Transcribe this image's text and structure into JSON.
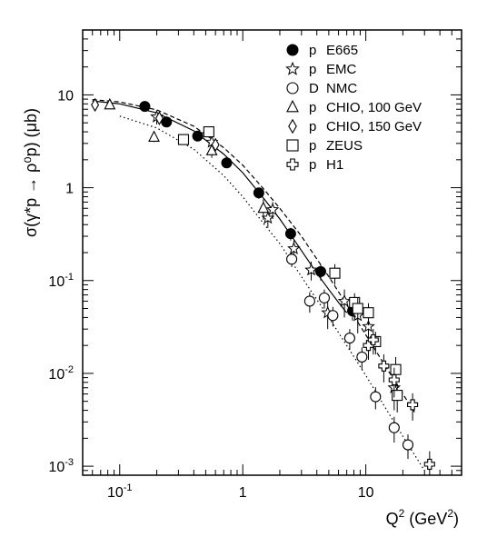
{
  "chart_data": {
    "type": "scatter",
    "x_scale": "log",
    "y_scale": "log",
    "xlim": [
      0.05,
      60
    ],
    "ylim": [
      0.0008,
      50
    ],
    "xlabel_main": "Q",
    "xlabel_sup": "2",
    "xlabel_unit_open": " (GeV",
    "xlabel_unit_sup": "2",
    "xlabel_unit_close": ")",
    "ylabel": "σ(γ*p → ρ⁰p) (μb)",
    "x_ticks": [
      {
        "value": 0.1,
        "base": "10",
        "exp": "-1"
      },
      {
        "value": 1,
        "base": "1",
        "exp": ""
      },
      {
        "value": 10,
        "base": "10",
        "exp": ""
      }
    ],
    "y_ticks": [
      {
        "value": 0.001,
        "base": "10",
        "exp": "-3"
      },
      {
        "value": 0.01,
        "base": "10",
        "exp": "-2"
      },
      {
        "value": 0.1,
        "base": "10",
        "exp": "-1"
      },
      {
        "value": 1,
        "base": "1",
        "exp": ""
      },
      {
        "value": 10,
        "base": "10",
        "exp": ""
      }
    ],
    "legend_position": "top-right",
    "series": [
      {
        "name": "p E665",
        "target": "p",
        "experiment": "E665",
        "marker": "filled-circle",
        "points": [
          [
            0.16,
            7.5,
            0.5
          ],
          [
            0.24,
            5.1,
            0.4
          ],
          [
            0.43,
            3.6,
            0.3
          ],
          [
            0.74,
            1.85,
            0.2
          ],
          [
            1.35,
            0.88,
            0.12
          ],
          [
            2.45,
            0.32,
            0.05
          ],
          [
            4.3,
            0.125,
            0.025
          ],
          [
            7.8,
            0.047,
            0.01
          ]
        ]
      },
      {
        "name": "p EMC",
        "target": "p",
        "experiment": "EMC",
        "marker": "star",
        "points": [
          [
            0.2,
            5.8,
            1.0
          ],
          [
            0.56,
            3.1,
            0.6
          ],
          [
            1.6,
            0.47,
            0.1
          ],
          [
            1.75,
            0.58,
            0.12
          ],
          [
            2.6,
            0.22,
            0.05
          ],
          [
            3.6,
            0.13,
            0.03
          ],
          [
            4.9,
            0.045,
            0.015
          ],
          [
            6.7,
            0.06,
            0.02
          ],
          [
            8.6,
            0.042,
            0.015
          ],
          [
            10.5,
            0.032,
            0.01
          ],
          [
            17,
            0.007,
            0.003
          ]
        ]
      },
      {
        "name": "D NMC",
        "target": "D",
        "experiment": "NMC",
        "marker": "open-circle",
        "points": [
          [
            2.5,
            0.17,
            0.03
          ],
          [
            3.5,
            0.06,
            0.015
          ],
          [
            4.6,
            0.065,
            0.015
          ],
          [
            5.4,
            0.042,
            0.01
          ],
          [
            7.4,
            0.024,
            0.006
          ],
          [
            9.3,
            0.015,
            0.004
          ],
          [
            12,
            0.0056,
            0.0015
          ],
          [
            17,
            0.0026,
            0.0008
          ],
          [
            22,
            0.0017,
            0.0005
          ]
        ]
      },
      {
        "name": "p CHIO, 100 GeV",
        "target": "p",
        "experiment": "CHIO, 100 GeV",
        "marker": "open-triangle",
        "points": [
          [
            0.083,
            7.8,
            0.6
          ],
          [
            0.19,
            3.5,
            0.4
          ],
          [
            0.56,
            2.5,
            0.4
          ],
          [
            1.47,
            0.6,
            0.15
          ]
        ]
      },
      {
        "name": "p CHIO, 150 GeV",
        "target": "p",
        "experiment": "CHIO, 150 GeV",
        "marker": "open-diamond",
        "points": [
          [
            0.063,
            7.8,
            0.6
          ],
          [
            0.21,
            5.6,
            0.5
          ],
          [
            0.6,
            2.9,
            0.4
          ]
        ]
      },
      {
        "name": "p ZEUS",
        "target": "p",
        "experiment": "ZEUS",
        "marker": "open-square",
        "points": [
          [
            0.33,
            3.3,
            0.4
          ],
          [
            0.53,
            4.0,
            0.5
          ],
          [
            5.6,
            0.12,
            0.03
          ],
          [
            8.1,
            0.058,
            0.015
          ],
          [
            8.6,
            0.05,
            0.015
          ],
          [
            10.5,
            0.045,
            0.012
          ],
          [
            12,
            0.022,
            0.006
          ],
          [
            17.5,
            0.011,
            0.004
          ],
          [
            18,
            0.0058,
            0.002
          ]
        ]
      },
      {
        "name": "p H1",
        "target": "p",
        "experiment": "H1",
        "marker": "open-cross",
        "points": [
          [
            10.5,
            0.02,
            0.006
          ],
          [
            11.5,
            0.023,
            0.007
          ],
          [
            14,
            0.012,
            0.004
          ],
          [
            17,
            0.0085,
            0.003
          ],
          [
            24,
            0.0046,
            0.0015
          ],
          [
            33,
            0.00105,
            0.0004
          ]
        ]
      }
    ],
    "curves": [
      {
        "style": "solid",
        "points": [
          [
            0.06,
            8.6
          ],
          [
            0.1,
            8.0
          ],
          [
            0.2,
            6.4
          ],
          [
            0.4,
            4.1
          ],
          [
            0.7,
            2.3
          ],
          [
            1.0,
            1.45
          ],
          [
            1.5,
            0.75
          ],
          [
            2.0,
            0.46
          ],
          [
            3.0,
            0.21
          ],
          [
            4.0,
            0.12
          ],
          [
            5.0,
            0.08
          ],
          [
            6.0,
            0.058
          ],
          [
            7.0,
            0.045
          ]
        ]
      },
      {
        "style": "dashed",
        "points": [
          [
            0.06,
            8.9
          ],
          [
            0.1,
            8.4
          ],
          [
            0.2,
            6.9
          ],
          [
            0.4,
            4.6
          ],
          [
            0.7,
            2.7
          ],
          [
            1.0,
            1.75
          ],
          [
            1.5,
            0.95
          ],
          [
            2.0,
            0.6
          ],
          [
            3.0,
            0.3
          ],
          [
            5.0,
            0.11
          ],
          [
            7.0,
            0.055
          ],
          [
            10,
            0.026
          ],
          [
            15,
            0.011
          ],
          [
            20,
            0.006
          ],
          [
            25,
            0.0038
          ]
        ]
      },
      {
        "style": "dotted",
        "points": [
          [
            0.1,
            5.9
          ],
          [
            0.2,
            4.4
          ],
          [
            0.4,
            2.6
          ],
          [
            0.7,
            1.35
          ],
          [
            1.0,
            0.8
          ],
          [
            1.5,
            0.4
          ],
          [
            2.0,
            0.25
          ],
          [
            3.0,
            0.11
          ],
          [
            5.0,
            0.04
          ],
          [
            7.0,
            0.02
          ],
          [
            10,
            0.0095
          ],
          [
            15,
            0.0039
          ],
          [
            20,
            0.0021
          ],
          [
            30,
            0.0009
          ]
        ]
      }
    ]
  }
}
